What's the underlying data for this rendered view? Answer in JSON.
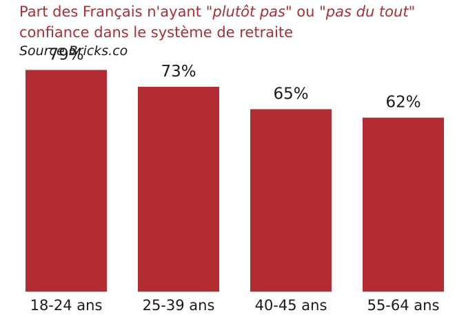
{
  "title": {
    "prefix": "Part des Français n'ayant \"",
    "italic1": "plutôt pas",
    "middle": "\" ou \"",
    "italic2": "pas du tout",
    "suffix": "\" confiance dans le système de retraite"
  },
  "source": "Source Bricks.co",
  "chart_data": {
    "type": "bar",
    "categories": [
      "18-24 ans",
      "25-39 ans",
      "40-45 ans",
      "55-64 ans"
    ],
    "values": [
      79,
      73,
      65,
      62
    ],
    "value_labels": [
      "79%",
      "73%",
      "65%",
      "62%"
    ],
    "unit": "%",
    "ylim": [
      0,
      100
    ],
    "grid": false,
    "legend": "none",
    "bar_color": "#b22c31"
  }
}
